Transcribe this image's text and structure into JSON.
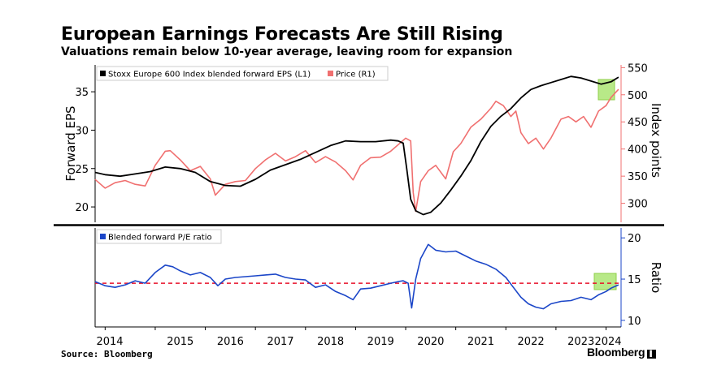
{
  "title": "European Earnings Forecasts Are Still Rising",
  "subtitle": "Valuations remain below 10-year average, leaving room for expansion",
  "source": "Source: Bloomberg",
  "brand": "Bloomberg",
  "brand_mark": "▌",
  "colors": {
    "eps": "#000000",
    "price": "#f07070",
    "pe": "#1b46c8",
    "avg": "#e8102a",
    "highlight": "#a6e36a",
    "axis": "#000000",
    "grid": "#d0d0d0"
  },
  "chart_data": [
    {
      "type": "line",
      "legend": [
        "Stoxx Europe 600 Index blended forward EPS (L1)",
        "Price (R1)"
      ],
      "ylabel_left": "Forward EPS",
      "ylabel_right": "Index points",
      "ylim_left": [
        18,
        38.5
      ],
      "ylim_right": [
        265,
        555
      ],
      "yticks_left": [
        20,
        25,
        30,
        35
      ],
      "yticks_right": [
        300,
        350,
        400,
        450,
        500,
        550
      ],
      "series": [
        {
          "name": "Stoxx Europe 600 Index blended forward EPS (L1)",
          "axis": "left",
          "x": [
            2013.8,
            2014.0,
            2014.3,
            2014.6,
            2014.9,
            2015.2,
            2015.5,
            2015.8,
            2016.1,
            2016.4,
            2016.7,
            2017.0,
            2017.3,
            2017.6,
            2017.9,
            2018.2,
            2018.5,
            2018.8,
            2019.1,
            2019.4,
            2019.7,
            2019.85,
            2019.95,
            2020.02,
            2020.1,
            2020.2,
            2020.35,
            2020.5,
            2020.7,
            2020.9,
            2021.1,
            2021.3,
            2021.5,
            2021.7,
            2021.9,
            2022.1,
            2022.3,
            2022.5,
            2022.7,
            2022.9,
            2023.1,
            2023.3,
            2023.5,
            2023.7,
            2023.9,
            2024.1,
            2024.25
          ],
          "values": [
            24.5,
            24.2,
            24.0,
            24.3,
            24.6,
            25.2,
            25.0,
            24.5,
            23.3,
            22.8,
            22.7,
            23.6,
            24.8,
            25.5,
            26.2,
            27.1,
            28.0,
            28.6,
            28.5,
            28.5,
            28.7,
            28.6,
            28.3,
            25.0,
            21.0,
            19.5,
            19.0,
            19.3,
            20.5,
            22.2,
            24.0,
            26.0,
            28.5,
            30.5,
            31.8,
            32.8,
            34.2,
            35.3,
            35.8,
            36.2,
            36.6,
            37.0,
            36.8,
            36.4,
            36.0,
            36.3,
            36.9
          ]
        },
        {
          "name": "Price (R1)",
          "axis": "right",
          "x": [
            2013.8,
            2014.0,
            2014.2,
            2014.4,
            2014.6,
            2014.8,
            2015.0,
            2015.2,
            2015.3,
            2015.5,
            2015.7,
            2015.9,
            2016.1,
            2016.2,
            2016.4,
            2016.6,
            2016.8,
            2017.0,
            2017.2,
            2017.4,
            2017.6,
            2017.8,
            2018.0,
            2018.2,
            2018.4,
            2018.6,
            2018.8,
            2018.95,
            2019.1,
            2019.3,
            2019.5,
            2019.7,
            2019.9,
            2020.0,
            2020.1,
            2020.15,
            2020.2,
            2020.3,
            2020.45,
            2020.6,
            2020.8,
            2020.95,
            2021.1,
            2021.3,
            2021.5,
            2021.7,
            2021.8,
            2021.95,
            2022.1,
            2022.2,
            2022.3,
            2022.45,
            2022.6,
            2022.75,
            2022.9,
            2023.1,
            2023.25,
            2023.4,
            2023.55,
            2023.7,
            2023.85,
            2024.0,
            2024.1,
            2024.25
          ],
          "values": [
            344,
            328,
            338,
            342,
            335,
            332,
            370,
            396,
            397,
            380,
            360,
            368,
            345,
            315,
            335,
            340,
            342,
            364,
            380,
            392,
            378,
            386,
            397,
            375,
            386,
            376,
            360,
            343,
            370,
            384,
            385,
            396,
            412,
            420,
            415,
            320,
            285,
            340,
            360,
            370,
            345,
            395,
            410,
            440,
            455,
            475,
            488,
            480,
            460,
            470,
            430,
            410,
            420,
            400,
            420,
            455,
            460,
            450,
            460,
            440,
            470,
            480,
            495,
            510
          ]
        }
      ]
    },
    {
      "type": "line",
      "legend": [
        "Blended forward P/E ratio"
      ],
      "ylabel_right": "Ratio",
      "ylim_right": [
        9.2,
        21.2
      ],
      "yticks_right": [
        10,
        15,
        20
      ],
      "xticks": [
        "2014",
        "2015",
        "2016",
        "2017",
        "2018",
        "2019",
        "2020",
        "2021",
        "2022",
        "2023",
        "2024"
      ],
      "reference_line": 14.5,
      "series": [
        {
          "name": "Blended forward P/E ratio",
          "axis": "right",
          "x": [
            2013.8,
            2014.0,
            2014.2,
            2014.4,
            2014.6,
            2014.8,
            2015.0,
            2015.2,
            2015.35,
            2015.5,
            2015.7,
            2015.9,
            2016.1,
            2016.25,
            2016.4,
            2016.6,
            2016.8,
            2017.0,
            2017.2,
            2017.4,
            2017.6,
            2017.8,
            2018.0,
            2018.2,
            2018.4,
            2018.6,
            2018.8,
            2018.95,
            2019.1,
            2019.3,
            2019.5,
            2019.7,
            2019.85,
            2019.95,
            2020.05,
            2020.12,
            2020.2,
            2020.3,
            2020.45,
            2020.6,
            2020.8,
            2021.0,
            2021.2,
            2021.4,
            2021.6,
            2021.8,
            2022.0,
            2022.15,
            2022.3,
            2022.45,
            2022.6,
            2022.75,
            2022.9,
            2023.1,
            2023.3,
            2023.5,
            2023.7,
            2023.85,
            2024.0,
            2024.1,
            2024.25
          ],
          "values": [
            14.7,
            14.2,
            14.0,
            14.3,
            14.8,
            14.5,
            15.8,
            16.7,
            16.5,
            16.0,
            15.5,
            15.8,
            15.2,
            14.2,
            15.0,
            15.2,
            15.3,
            15.4,
            15.5,
            15.6,
            15.2,
            15.0,
            14.9,
            14.0,
            14.3,
            13.5,
            13.0,
            12.5,
            13.8,
            13.9,
            14.2,
            14.5,
            14.7,
            14.8,
            14.5,
            11.5,
            15.0,
            17.5,
            19.2,
            18.5,
            18.3,
            18.4,
            17.8,
            17.2,
            16.8,
            16.2,
            15.2,
            14.0,
            12.8,
            12.0,
            11.6,
            11.4,
            12.0,
            12.3,
            12.4,
            12.8,
            12.5,
            13.1,
            13.5,
            13.9,
            14.3
          ]
        }
      ]
    }
  ]
}
